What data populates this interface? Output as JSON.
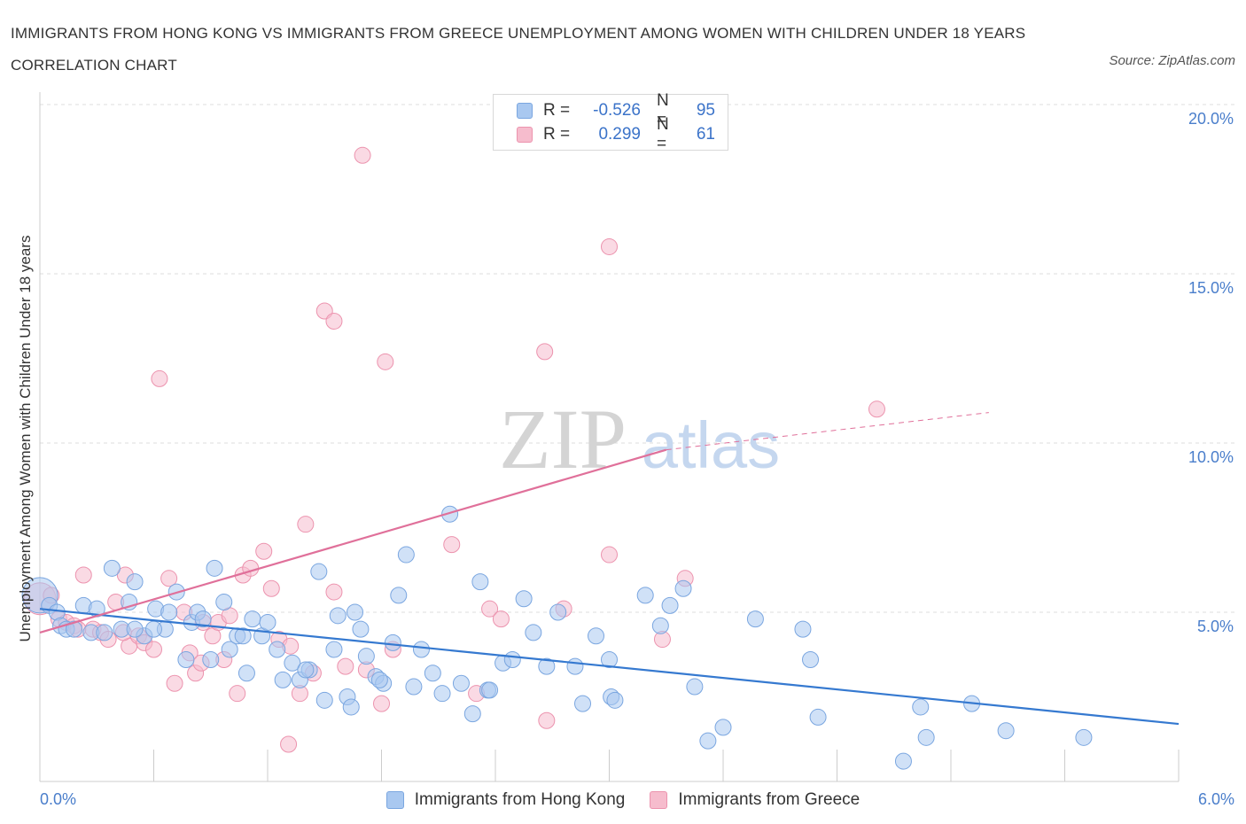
{
  "title": "IMMIGRANTS FROM HONG KONG VS IMMIGRANTS FROM GREECE UNEMPLOYMENT AMONG WOMEN WITH CHILDREN UNDER 18 YEARS CORRELATION CHART",
  "source": "Source: ZipAtlas.com",
  "watermark": {
    "zip": "ZIP",
    "atlas": "atlas"
  },
  "legend": {
    "rows": [
      {
        "r_label": "R =",
        "r_value": "-0.526",
        "n_label": "N =",
        "n_value": "95"
      },
      {
        "r_label": "R =",
        "r_value": "0.299",
        "n_label": "N =",
        "n_value": "61"
      }
    ]
  },
  "colors": {
    "hong_kong_fill": "#a9c8f0",
    "hong_kong_stroke": "#7aa6e0",
    "hong_kong_line": "#3579d0",
    "greece_fill": "#f6bccd",
    "greece_stroke": "#ec93ae",
    "greece_line": "#e0709a",
    "tick_text": "#4a7ecb"
  },
  "chart_data": {
    "type": "scatter",
    "xlabel": "",
    "ylabel": "Unemployment Among Women with Children Under 18 years",
    "xlim": [
      0,
      6
    ],
    "ylim": [
      0,
      20
    ],
    "x_tick_labels": [
      "0.0%",
      "6.0%"
    ],
    "y_ticks": [
      5,
      10,
      15,
      20
    ],
    "y_tick_labels": [
      "5.0%",
      "10.0%",
      "15.0%",
      "20.0%"
    ],
    "grid": "horizontal dashed",
    "legend_position": "top-center",
    "series": [
      {
        "name": "Immigrants from Hong Kong",
        "color": "#a9c8f0",
        "trend": {
          "x": [
            0,
            6
          ],
          "y": [
            5.1,
            1.7
          ]
        },
        "points": [
          {
            "x": 0.0,
            "y": 5.5,
            "big": true
          },
          {
            "x": 0.05,
            "y": 5.2
          },
          {
            "x": 0.09,
            "y": 5.0
          },
          {
            "x": 0.11,
            "y": 4.6
          },
          {
            "x": 0.14,
            "y": 4.5
          },
          {
            "x": 0.18,
            "y": 4.5
          },
          {
            "x": 0.23,
            "y": 5.2
          },
          {
            "x": 0.27,
            "y": 4.4
          },
          {
            "x": 0.34,
            "y": 4.4
          },
          {
            "x": 0.38,
            "y": 6.3
          },
          {
            "x": 0.43,
            "y": 4.5
          },
          {
            "x": 0.47,
            "y": 5.3
          },
          {
            "x": 0.5,
            "y": 5.9
          },
          {
            "x": 0.55,
            "y": 4.3
          },
          {
            "x": 0.61,
            "y": 5.1
          },
          {
            "x": 0.66,
            "y": 4.5
          },
          {
            "x": 0.68,
            "y": 5.0
          },
          {
            "x": 0.72,
            "y": 5.6
          },
          {
            "x": 0.77,
            "y": 3.6
          },
          {
            "x": 0.8,
            "y": 4.7
          },
          {
            "x": 0.83,
            "y": 5.0
          },
          {
            "x": 0.86,
            "y": 4.8
          },
          {
            "x": 0.9,
            "y": 3.6
          },
          {
            "x": 0.92,
            "y": 6.3
          },
          {
            "x": 0.97,
            "y": 5.3
          },
          {
            "x": 1.0,
            "y": 3.9
          },
          {
            "x": 1.04,
            "y": 4.3
          },
          {
            "x": 1.09,
            "y": 3.2
          },
          {
            "x": 1.12,
            "y": 4.8
          },
          {
            "x": 1.17,
            "y": 4.3
          },
          {
            "x": 1.2,
            "y": 4.7
          },
          {
            "x": 1.25,
            "y": 3.9
          },
          {
            "x": 1.28,
            "y": 3.0
          },
          {
            "x": 1.33,
            "y": 3.5
          },
          {
            "x": 1.37,
            "y": 3.0
          },
          {
            "x": 1.42,
            "y": 3.3
          },
          {
            "x": 1.47,
            "y": 6.2
          },
          {
            "x": 1.5,
            "y": 2.4
          },
          {
            "x": 1.55,
            "y": 3.9
          },
          {
            "x": 1.57,
            "y": 4.9
          },
          {
            "x": 1.62,
            "y": 2.5
          },
          {
            "x": 1.64,
            "y": 2.2
          },
          {
            "x": 1.66,
            "y": 5.0
          },
          {
            "x": 1.69,
            "y": 4.5
          },
          {
            "x": 1.72,
            "y": 3.7
          },
          {
            "x": 1.77,
            "y": 3.1
          },
          {
            "x": 1.81,
            "y": 2.9
          },
          {
            "x": 1.86,
            "y": 4.1
          },
          {
            "x": 1.89,
            "y": 5.5
          },
          {
            "x": 1.93,
            "y": 6.7
          },
          {
            "x": 1.97,
            "y": 2.8
          },
          {
            "x": 2.01,
            "y": 3.9
          },
          {
            "x": 2.07,
            "y": 3.2
          },
          {
            "x": 2.12,
            "y": 2.6
          },
          {
            "x": 2.16,
            "y": 7.9
          },
          {
            "x": 2.22,
            "y": 2.9
          },
          {
            "x": 2.28,
            "y": 2.0
          },
          {
            "x": 2.32,
            "y": 5.9
          },
          {
            "x": 2.36,
            "y": 2.7
          },
          {
            "x": 2.44,
            "y": 3.5
          },
          {
            "x": 2.49,
            "y": 3.6
          },
          {
            "x": 2.55,
            "y": 5.4
          },
          {
            "x": 2.6,
            "y": 4.4
          },
          {
            "x": 2.67,
            "y": 3.4
          },
          {
            "x": 2.73,
            "y": 5.0
          },
          {
            "x": 2.86,
            "y": 2.3
          },
          {
            "x": 2.93,
            "y": 4.3
          },
          {
            "x": 3.0,
            "y": 3.6
          },
          {
            "x": 3.01,
            "y": 2.5
          },
          {
            "x": 3.03,
            "y": 2.4
          },
          {
            "x": 3.19,
            "y": 5.5
          },
          {
            "x": 3.27,
            "y": 4.6
          },
          {
            "x": 3.32,
            "y": 5.2
          },
          {
            "x": 3.39,
            "y": 5.7
          },
          {
            "x": 3.45,
            "y": 2.8
          },
          {
            "x": 3.52,
            "y": 1.2
          },
          {
            "x": 3.6,
            "y": 1.6
          },
          {
            "x": 3.77,
            "y": 4.8
          },
          {
            "x": 4.02,
            "y": 4.5
          },
          {
            "x": 4.06,
            "y": 3.6
          },
          {
            "x": 4.1,
            "y": 1.9
          },
          {
            "x": 4.55,
            "y": 0.6
          },
          {
            "x": 4.64,
            "y": 2.2
          },
          {
            "x": 4.67,
            "y": 1.3
          },
          {
            "x": 4.91,
            "y": 2.3
          },
          {
            "x": 5.09,
            "y": 1.5
          },
          {
            "x": 5.5,
            "y": 1.3
          },
          {
            "x": 1.07,
            "y": 4.3
          },
          {
            "x": 0.6,
            "y": 4.5
          },
          {
            "x": 1.4,
            "y": 3.3
          },
          {
            "x": 2.82,
            "y": 3.4
          },
          {
            "x": 0.3,
            "y": 5.1
          },
          {
            "x": 1.79,
            "y": 3.0
          },
          {
            "x": 2.37,
            "y": 2.7
          },
          {
            "x": 0.5,
            "y": 4.5
          }
        ]
      },
      {
        "name": "Immigrants from Greece",
        "color": "#f6bccd",
        "trend": {
          "x": [
            0,
            3.3
          ],
          "y": [
            4.4,
            9.8
          ],
          "dashed_x": [
            3.3,
            5.0
          ],
          "dashed_y": [
            9.8,
            10.9
          ]
        },
        "points": [
          {
            "x": 0.0,
            "y": 5.4,
            "big": true
          },
          {
            "x": 0.06,
            "y": 5.5
          },
          {
            "x": 0.1,
            "y": 4.8
          },
          {
            "x": 0.14,
            "y": 4.7
          },
          {
            "x": 0.18,
            "y": 4.6
          },
          {
            "x": 0.23,
            "y": 6.1
          },
          {
            "x": 0.28,
            "y": 4.5
          },
          {
            "x": 0.32,
            "y": 4.4
          },
          {
            "x": 0.36,
            "y": 4.2
          },
          {
            "x": 0.4,
            "y": 5.3
          },
          {
            "x": 0.45,
            "y": 6.1
          },
          {
            "x": 0.47,
            "y": 4.0
          },
          {
            "x": 0.52,
            "y": 4.3
          },
          {
            "x": 0.55,
            "y": 4.1
          },
          {
            "x": 0.6,
            "y": 3.9
          },
          {
            "x": 0.63,
            "y": 11.9
          },
          {
            "x": 0.68,
            "y": 6.0
          },
          {
            "x": 0.71,
            "y": 2.9
          },
          {
            "x": 0.76,
            "y": 5.0
          },
          {
            "x": 0.79,
            "y": 3.8
          },
          {
            "x": 0.82,
            "y": 3.2
          },
          {
            "x": 0.86,
            "y": 4.7
          },
          {
            "x": 0.91,
            "y": 4.3
          },
          {
            "x": 0.94,
            "y": 4.7
          },
          {
            "x": 0.97,
            "y": 3.6
          },
          {
            "x": 1.0,
            "y": 4.9
          },
          {
            "x": 1.04,
            "y": 2.6
          },
          {
            "x": 1.07,
            "y": 6.1
          },
          {
            "x": 1.11,
            "y": 6.3
          },
          {
            "x": 1.18,
            "y": 6.8
          },
          {
            "x": 1.22,
            "y": 5.7
          },
          {
            "x": 1.26,
            "y": 4.2
          },
          {
            "x": 1.31,
            "y": 1.1
          },
          {
            "x": 1.37,
            "y": 2.6
          },
          {
            "x": 1.4,
            "y": 7.6
          },
          {
            "x": 1.44,
            "y": 3.2
          },
          {
            "x": 1.5,
            "y": 13.9
          },
          {
            "x": 1.55,
            "y": 13.6
          },
          {
            "x": 1.55,
            "y": 5.6
          },
          {
            "x": 1.7,
            "y": 18.5
          },
          {
            "x": 1.72,
            "y": 3.3
          },
          {
            "x": 1.8,
            "y": 2.3
          },
          {
            "x": 1.82,
            "y": 12.4
          },
          {
            "x": 1.86,
            "y": 3.9
          },
          {
            "x": 2.17,
            "y": 7.0
          },
          {
            "x": 2.3,
            "y": 2.6
          },
          {
            "x": 2.37,
            "y": 5.1
          },
          {
            "x": 2.43,
            "y": 4.8
          },
          {
            "x": 2.66,
            "y": 12.7
          },
          {
            "x": 2.67,
            "y": 1.8
          },
          {
            "x": 2.76,
            "y": 5.1
          },
          {
            "x": 3.0,
            "y": 6.7
          },
          {
            "x": 3.0,
            "y": 15.8
          },
          {
            "x": 3.28,
            "y": 4.2
          },
          {
            "x": 3.4,
            "y": 6.0
          },
          {
            "x": 4.41,
            "y": 11.0
          },
          {
            "x": 0.2,
            "y": 4.5
          },
          {
            "x": 0.85,
            "y": 3.5
          },
          {
            "x": 1.32,
            "y": 4.0
          },
          {
            "x": 1.61,
            "y": 3.4
          },
          {
            "x": 0.44,
            "y": 4.4
          }
        ]
      }
    ]
  }
}
